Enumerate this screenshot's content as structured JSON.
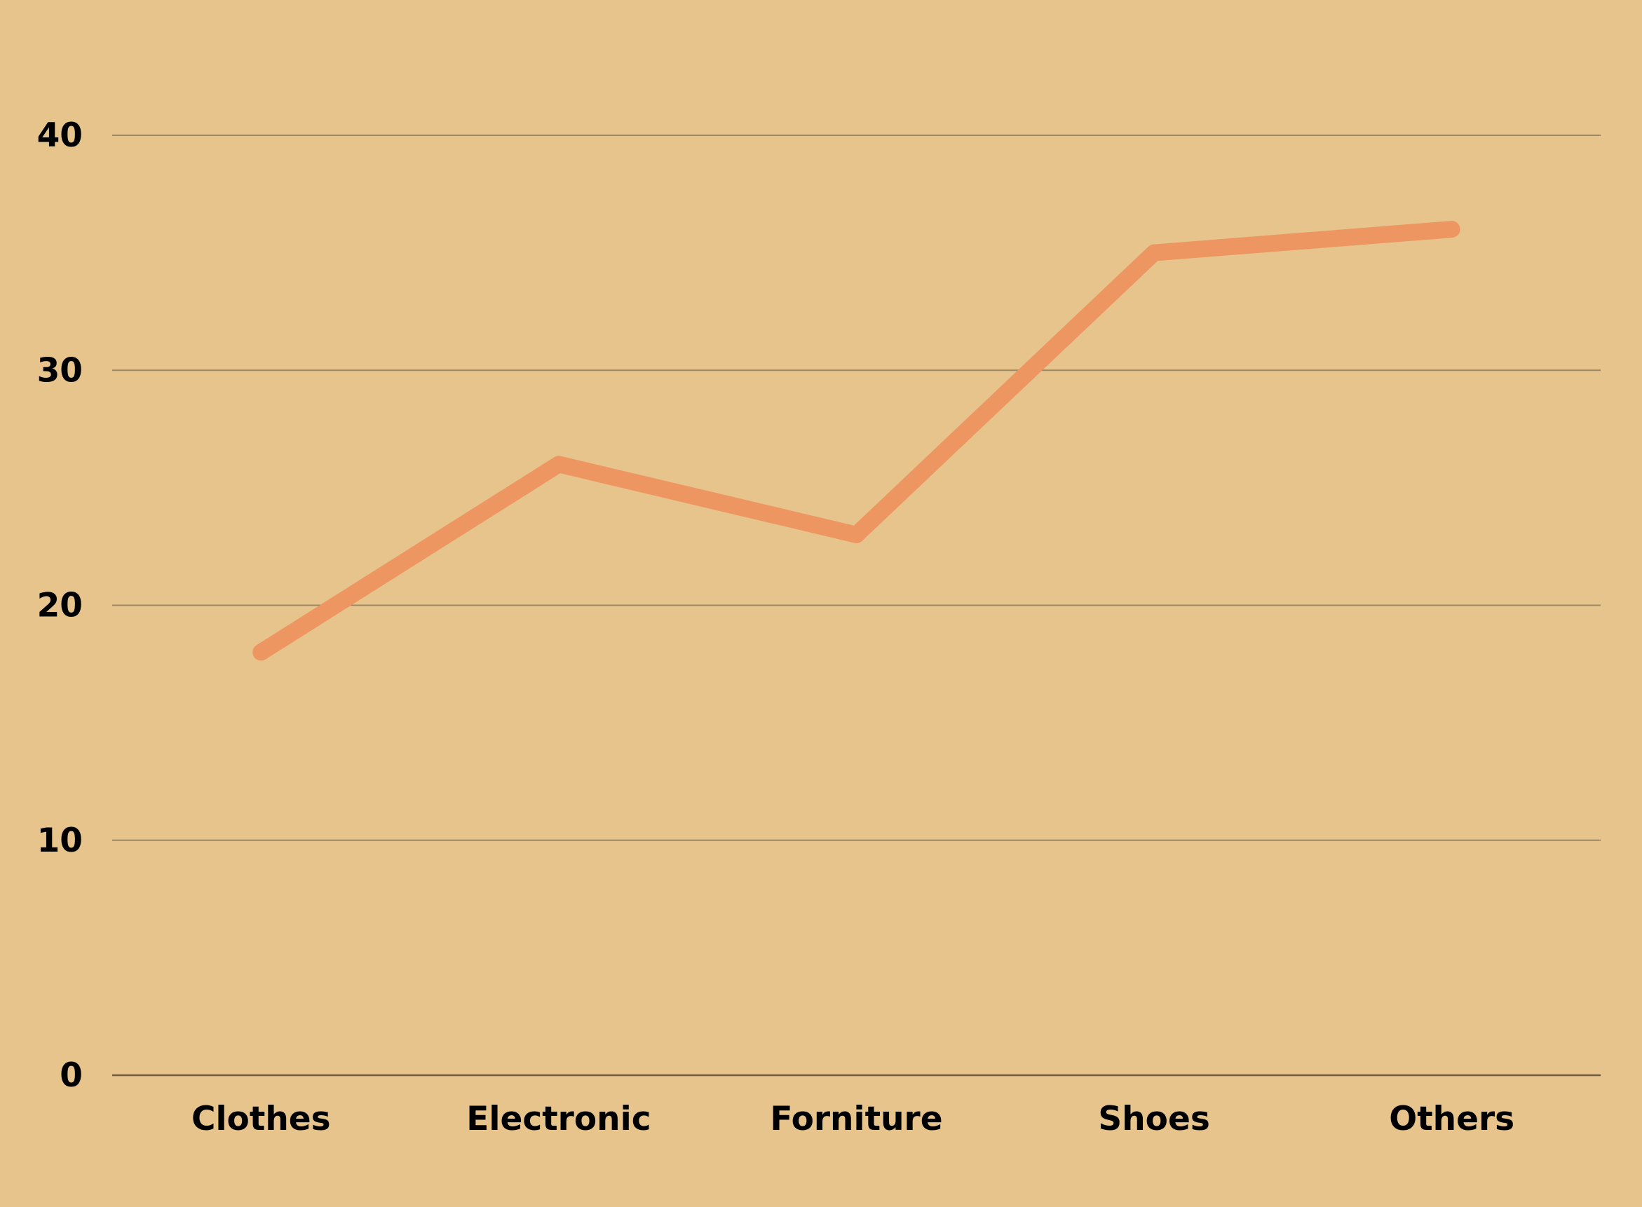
{
  "chart_data": {
    "type": "line",
    "title": "",
    "xlabel": "",
    "ylabel": "",
    "categories": [
      "Clothes",
      "Electronic",
      "Forniture",
      "Shoes",
      "Others"
    ],
    "series": [
      {
        "values": [
          18,
          26,
          23,
          35,
          36
        ]
      }
    ],
    "ylim": [
      0,
      40
    ],
    "yticks": [
      "0",
      "10",
      "20",
      "30",
      "40"
    ],
    "grid": true,
    "legend": "none"
  },
  "colors": {
    "background": "#E6C48C",
    "series": "#EE9662",
    "grid": "#9A8766",
    "axis": "#6E5A3E",
    "text": "#000000"
  }
}
